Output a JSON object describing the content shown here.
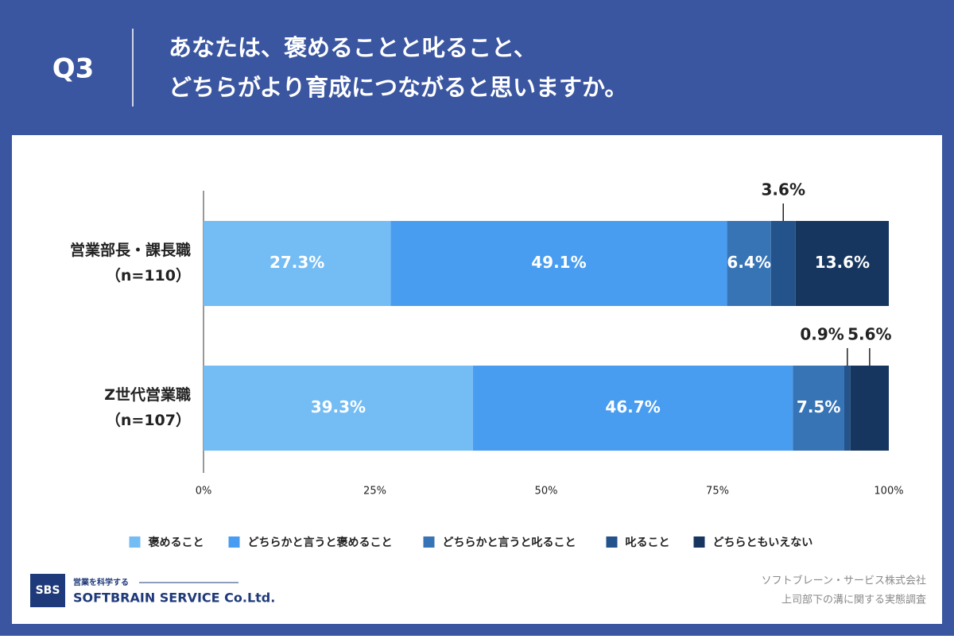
{
  "header": {
    "question": "Q3",
    "title_lines": [
      "あなたは、褒めることと叱ること、",
      "どちらがより育成につながると思いますか。"
    ]
  },
  "chart_data": {
    "type": "stacked-bar-horizontal",
    "categories": [
      "営業部長・課長職",
      "Z世代営業職"
    ],
    "category_notes": [
      "（n=110）",
      "（n=107）"
    ],
    "series": [
      {
        "name": "褒めること",
        "color": "#74bcf4",
        "values": [
          27.3,
          39.3
        ],
        "value_labels": [
          "27.3%",
          "39.3%"
        ]
      },
      {
        "name": "どちらかと言うと褒めること",
        "color": "#499df0",
        "values": [
          49.1,
          46.7
        ],
        "value_labels": [
          "49.1%",
          "46.7%"
        ]
      },
      {
        "name": "どちらかと言うと叱ること",
        "color": "#3774b6",
        "values": [
          6.4,
          7.5
        ],
        "value_labels": [
          "6.4%",
          "7.5%"
        ]
      },
      {
        "name": "叱ること",
        "color": "#24528a",
        "values": [
          3.6,
          0.9
        ],
        "value_labels": [
          "3.6%",
          "0.9%"
        ]
      },
      {
        "name": "どちらともいえない",
        "color": "#17365f",
        "values": [
          13.6,
          5.6
        ],
        "value_labels": [
          "13.6%",
          "5.6%"
        ]
      }
    ],
    "xlim": [
      0,
      100
    ],
    "xticks": [
      {
        "value": 0,
        "label": "0%"
      },
      {
        "value": 25,
        "label": "25%"
      },
      {
        "value": 50,
        "label": "50%"
      },
      {
        "value": 75,
        "label": "75%"
      },
      {
        "value": 100,
        "label": "100%"
      }
    ],
    "legend": "bottom"
  },
  "footer": {
    "logo_mark": "SBS",
    "logo_tagline": "営業を科学する",
    "logo_name": "SOFTBRAIN SERVICE Co.Ltd.",
    "source_lines": [
      "ソフトブレーン・サービス株式会社",
      "上司部下の溝に関する実態調査"
    ]
  }
}
